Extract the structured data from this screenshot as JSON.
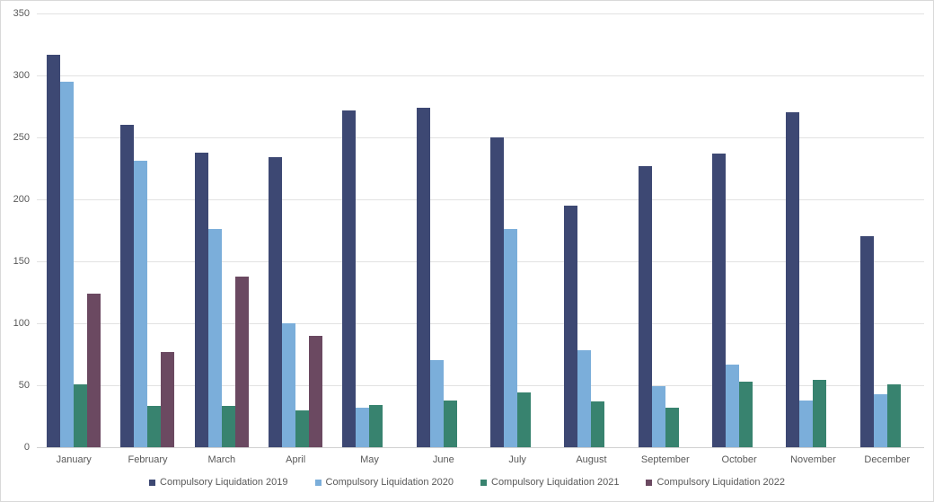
{
  "chart_data": {
    "type": "bar",
    "title": "",
    "xlabel": "",
    "ylabel": "",
    "categories": [
      "January",
      "February",
      "March",
      "April",
      "May",
      "June",
      "July",
      "August",
      "September",
      "October",
      "November",
      "December"
    ],
    "series": [
      {
        "name": "Compulsory Liquidation 2019",
        "color": "#3d4873",
        "values": [
          317,
          260,
          238,
          234,
          272,
          274,
          250,
          195,
          227,
          237,
          270,
          170
        ]
      },
      {
        "name": "Compulsory Liquidation 2020",
        "color": "#7baeda",
        "values": [
          295,
          231,
          176,
          100,
          32,
          70,
          176,
          78,
          49,
          67,
          38,
          43
        ]
      },
      {
        "name": "Compulsory Liquidation 2021",
        "color": "#38836f",
        "values": [
          51,
          33,
          33,
          30,
          34,
          38,
          44,
          37,
          32,
          53,
          54,
          51
        ]
      },
      {
        "name": "Compulsory Liquidation 2022",
        "color": "#6b4961",
        "values": [
          124,
          77,
          138,
          90,
          null,
          null,
          null,
          null,
          null,
          null,
          null,
          null
        ]
      }
    ],
    "ylim": [
      0,
      350
    ],
    "yticks": [
      0,
      50,
      100,
      150,
      200,
      250,
      300,
      350
    ],
    "grid": true,
    "legend_position": "bottom"
  },
  "colors": {
    "background": "#ffffff",
    "frame_border": "#d9d9d9",
    "gridline": "#e2e2e2",
    "axisline": "#d0d0d0",
    "tick_text": "#595959"
  }
}
